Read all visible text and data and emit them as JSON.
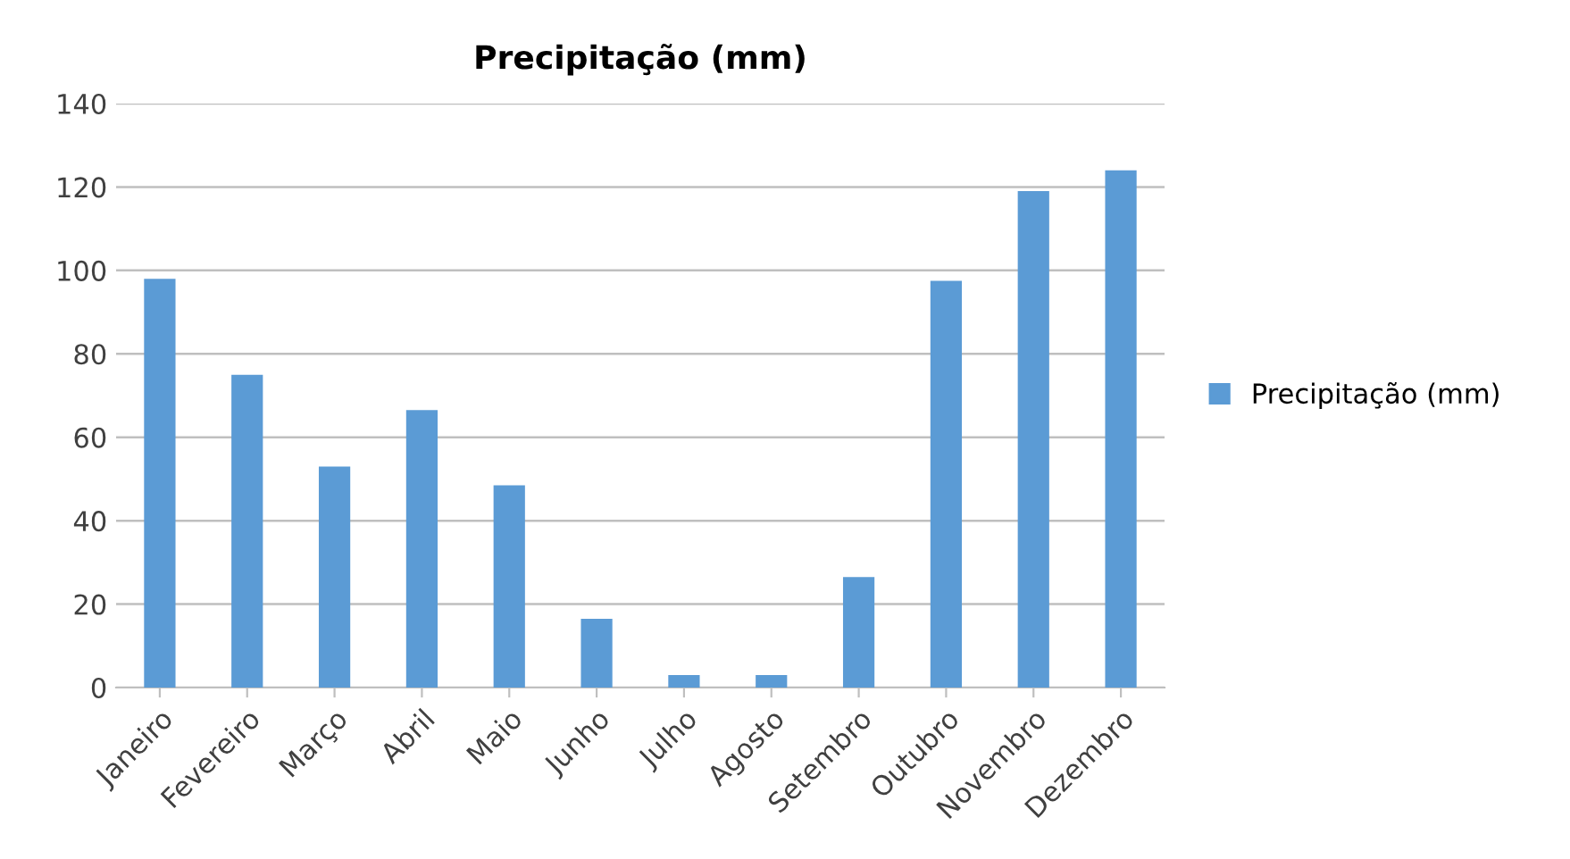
{
  "chart_data": {
    "type": "bar",
    "title": "Precipitação (mm)",
    "categories": [
      "Janeiro",
      "Fevereiro",
      "Março",
      "Abril",
      "Maio",
      "Junho",
      "Julho",
      "Agosto",
      "Setembro",
      "Outubro",
      "Novembro",
      "Dezembro"
    ],
    "series": [
      {
        "name": "Precipitação (mm)",
        "color": "#5b9bd5",
        "values": [
          98,
          75,
          53,
          66.5,
          48.5,
          16.5,
          3,
          3,
          26.5,
          97.5,
          119,
          124
        ]
      }
    ],
    "ylim": [
      0,
      140
    ],
    "yticks": [
      0,
      20,
      40,
      60,
      80,
      100,
      120,
      140
    ],
    "grid": "y",
    "legend": "right"
  }
}
